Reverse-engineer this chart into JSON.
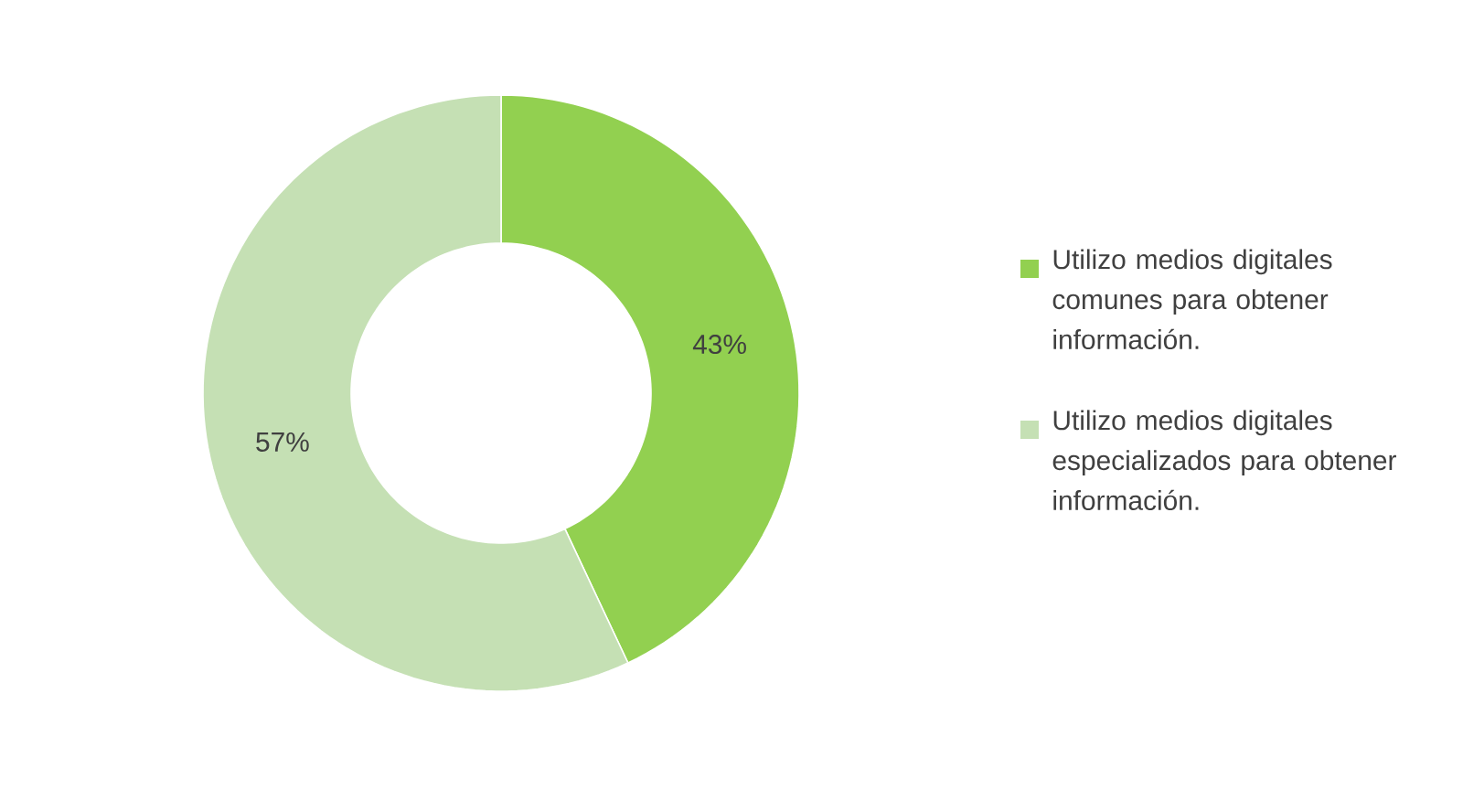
{
  "chart_data": {
    "type": "donut",
    "categories": [
      "Utilizo medios digitales comunes para obtener información.",
      "Utilizo medios digitales especializados para obtener información."
    ],
    "values": [
      43,
      57
    ],
    "colors": [
      "#92d050",
      "#c5e0b4"
    ],
    "value_labels": [
      "43%",
      "57%"
    ],
    "legend": "right"
  }
}
